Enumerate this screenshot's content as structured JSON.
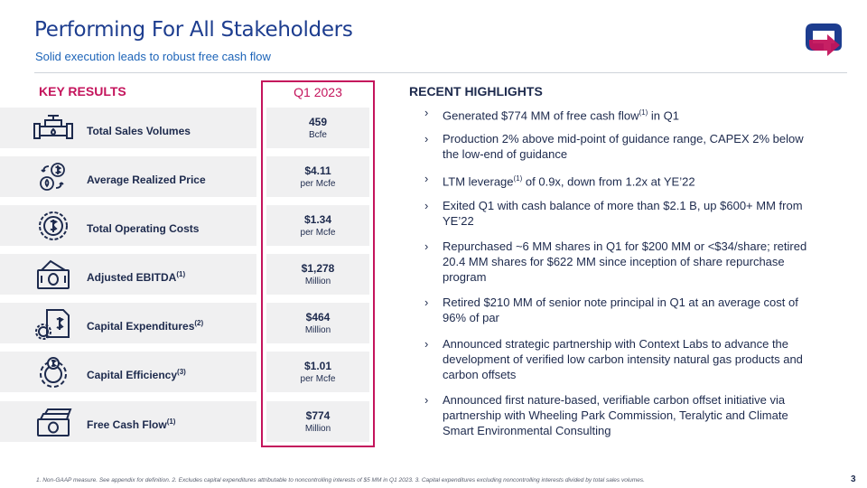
{
  "header": {
    "title": "Performing For All Stakeholders",
    "subtitle": "Solid execution leads to robust free cash flow"
  },
  "key_results": {
    "heading": "KEY RESULTS",
    "period": "Q1 2023",
    "rows": [
      {
        "label": "Total Sales Volumes",
        "sup": "",
        "value": "459",
        "unit": "Bcfe",
        "icon": "pipeline-icon"
      },
      {
        "label": "Average Realized Price",
        "sup": "",
        "value": "$4.11",
        "unit": "per Mcfe",
        "icon": "price-exchange-icon"
      },
      {
        "label": "Total Operating Costs",
        "sup": "",
        "value": "$1.34",
        "unit": "per Mcfe",
        "icon": "cost-cycle-icon"
      },
      {
        "label": "Adjusted EBITDA",
        "sup": "(1)",
        "value": "$1,278",
        "unit": "Million",
        "icon": "cash-icon"
      },
      {
        "label": "Capital Expenditures",
        "sup": "(2)",
        "value": "$464",
        "unit": "Million",
        "icon": "capex-document-icon"
      },
      {
        "label": "Capital Efficiency",
        "sup": "(3)",
        "value": "$1.01",
        "unit": "per Mcfe",
        "icon": "gear-dollar-icon"
      },
      {
        "label": "Free Cash Flow",
        "sup": "(1)",
        "value": "$774",
        "unit": "Million",
        "icon": "cash-stack-icon"
      }
    ]
  },
  "highlights": {
    "heading": "RECENT HIGHLIGHTS",
    "items": [
      {
        "pre": "Generated $774 MM of free cash flow",
        "sup": "(1)",
        "post": " in Q1"
      },
      {
        "pre": "Production 2% above mid-point of guidance range, CAPEX 2% below the low-end of guidance",
        "sup": "",
        "post": ""
      },
      {
        "pre": "LTM leverage",
        "sup": "(1)",
        "post": " of 0.9x, down from 1.2x at YE’22"
      },
      {
        "pre": "Exited Q1 with cash balance of more than $2.1 B, up $600+ MM from YE’22",
        "sup": "",
        "post": ""
      },
      {
        "pre": "Repurchased ~6 MM shares in Q1 for $200 MM or <$34/share; retired 20.4 MM shares for $622 MM since inception of share repurchase program",
        "sup": "",
        "post": ""
      },
      {
        "pre": "Retired $210 MM of senior note principal in Q1 at an average cost of 96% of par",
        "sup": "",
        "post": ""
      },
      {
        "pre": "Announced strategic partnership with Context Labs to advance the development of verified low carbon intensity natural gas products and carbon offsets",
        "sup": "",
        "post": ""
      },
      {
        "pre": "Announced first nature-based, verifiable carbon offset initiative via partnership with Wheeling Park Commission, Teralytic and Climate Smart Environmental Consulting",
        "sup": "",
        "post": ""
      }
    ]
  },
  "footnote": "1. Non-GAAP measure. See appendix for definition. 2. Excludes capital expenditures attributable to noncontrolling interests of $5 MM in Q1 2023. 3. Capital expenditures excluding noncontrolling interests divided by total sales volumes.",
  "page_number": "3",
  "colors": {
    "title": "#1d3d8f",
    "subtitle": "#1d64b8",
    "accent": "#c4145c",
    "text": "#1d2a4d",
    "row_bg": "#f0f0f1"
  }
}
